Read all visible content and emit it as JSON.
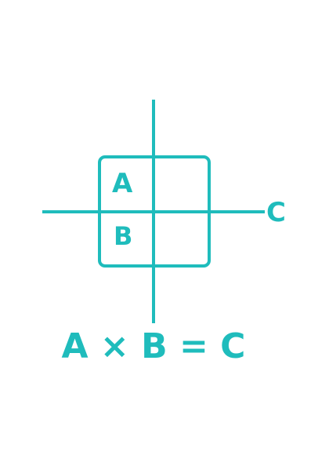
{
  "diagram": {
    "label_a": "A",
    "label_b": "B",
    "label_c": "C",
    "equation": "A × B = C"
  },
  "colors": {
    "accent": "#1fbcbc",
    "background": "#ffffff"
  }
}
